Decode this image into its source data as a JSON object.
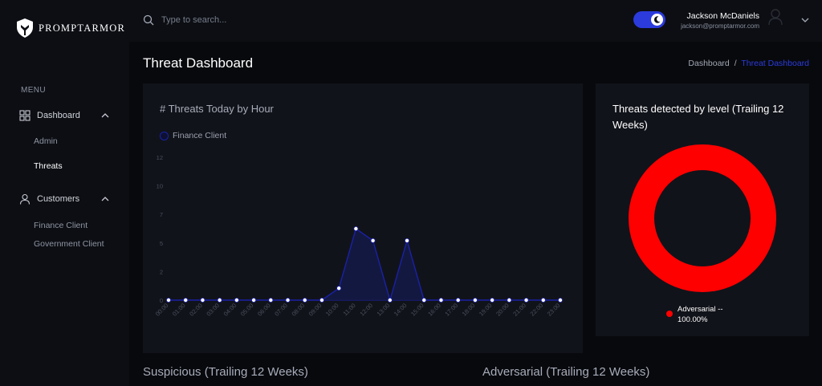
{
  "brand": {
    "name": "PROMPTARMOR"
  },
  "sidebar": {
    "menu_label": "MENU",
    "groups": [
      {
        "label": "Dashboard",
        "icon": "grid-icon",
        "expanded": true,
        "items": [
          {
            "label": "Admin",
            "active": false
          },
          {
            "label": "Threats",
            "active": true
          }
        ]
      },
      {
        "label": "Customers",
        "icon": "user-icon",
        "expanded": true,
        "items": [
          {
            "label": "Finance Client",
            "active": false
          },
          {
            "label": "Government Client",
            "active": false
          }
        ]
      }
    ]
  },
  "header": {
    "search_placeholder": "Type to search...",
    "dark_mode": true,
    "user": {
      "name": "Jackson McDaniels",
      "email": "jackson@promptarmor.com"
    }
  },
  "page": {
    "title": "Threat Dashboard",
    "breadcrumb": {
      "home": "Dashboard",
      "separator": "/",
      "current": "Threat Dashboard"
    }
  },
  "cards": {
    "hourly": {
      "title": "# Threats Today by Hour",
      "legend": "Finance Client"
    },
    "level": {
      "title": "Threats detected by level (Trailing 12 Weeks)",
      "legend": "Adversarial -- 100.00%"
    }
  },
  "sections": {
    "suspicious": "Suspicious (Trailing 12 Weeks)",
    "adversarial": "Adversarial (Trailing 12 Weeks)"
  },
  "colors": {
    "accent": "#2b3bdc",
    "line": "#1a21a8",
    "adversarial": "#ff0000",
    "background": "#08090d",
    "card": "#11131a"
  },
  "chart_data": [
    {
      "type": "area",
      "title": "# Threats Today by Hour",
      "x": [
        "00:00",
        "01:00",
        "02:00",
        "03:00",
        "04:00",
        "05:00",
        "06:00",
        "07:00",
        "08:00",
        "09:00",
        "10:00",
        "11:00",
        "12:00",
        "13:00",
        "14:00",
        "15:00",
        "16:00",
        "17:00",
        "18:00",
        "19:00",
        "20:00",
        "21:00",
        "22:00",
        "23:00"
      ],
      "series": [
        {
          "name": "Finance Client",
          "values": [
            0,
            0,
            0,
            0,
            0,
            0,
            0,
            0,
            0,
            0,
            1,
            6,
            5,
            0,
            5,
            0,
            0,
            0,
            0,
            0,
            0,
            0,
            0,
            0
          ]
        }
      ],
      "yticks": [
        "0",
        "2",
        "5",
        "7",
        "10",
        "12"
      ],
      "ylim": [
        0,
        12
      ],
      "legend_position": "top-left",
      "grid": false
    },
    {
      "type": "pie",
      "title": "Threats detected by level (Trailing 12 Weeks)",
      "labels": [
        "Adversarial"
      ],
      "values": [
        100.0
      ],
      "colors": [
        "#ff0000"
      ],
      "donut": true,
      "legend_position": "bottom"
    }
  ]
}
